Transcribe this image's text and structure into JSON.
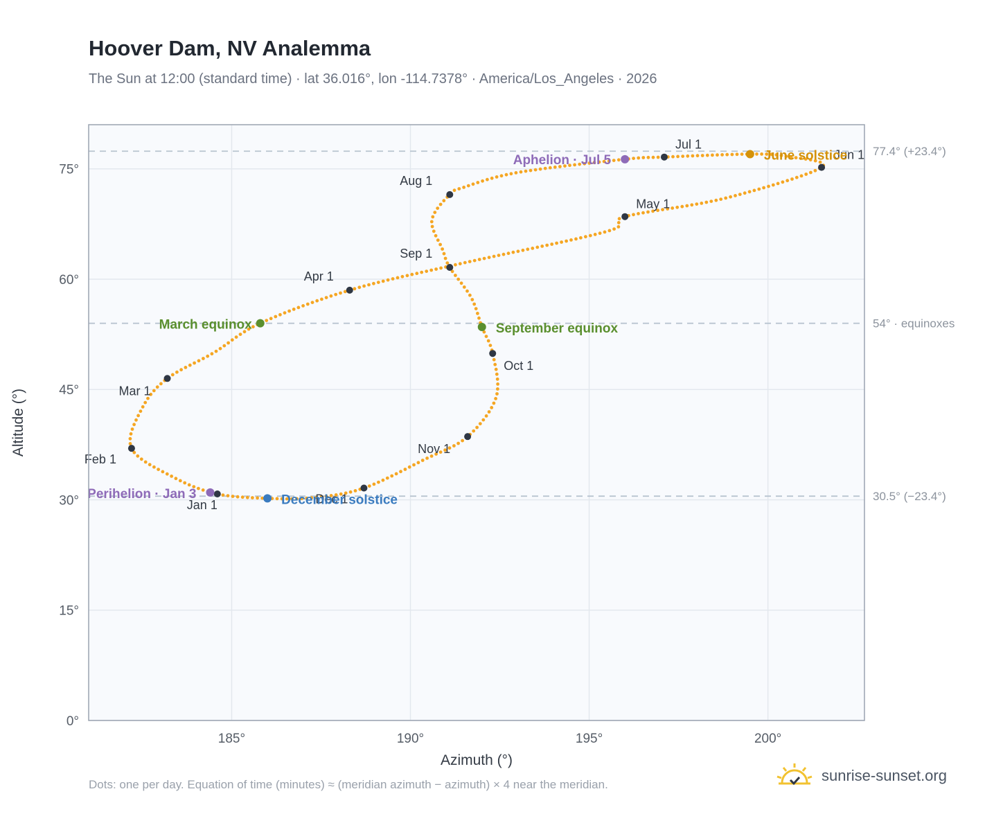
{
  "title": "Hoover Dam, NV Analemma",
  "subtitle": "The Sun at 12:00 (standard time) · lat 36.016°, lon -114.7378° · America/Los_Angeles · 2026",
  "footnote": "Dots: one per day. Equation of time (minutes) ≈ (meridian azimuth − azimuth) × 4 near the meridian.",
  "brand": {
    "name": "sunrise-sunset.org",
    "logo_icon": "sun-checkmark-icon"
  },
  "colors": {
    "curve": "#f5a623",
    "month_marker": "#2f3744",
    "equinox": "#5a8f2e",
    "june_solstice": "#d4920a",
    "december_solstice": "#3a7bbf",
    "apsis": "#8e6bb8",
    "plot_bg": "#f8fafd",
    "grid": "#e3e8ee",
    "reference_line": "#b8c4d0",
    "axis_border": "#9aa3b0"
  },
  "chart_data": {
    "type": "scatter",
    "title": "Hoover Dam, NV Analemma",
    "xlabel": "Azimuth (°)",
    "ylabel": "Altitude (°)",
    "xlim": [
      181,
      202.7
    ],
    "ylim": [
      0,
      81
    ],
    "grid": true,
    "x_ticks": [
      185,
      190,
      195,
      200
    ],
    "x_tick_labels": [
      "185°",
      "190°",
      "195°",
      "200°"
    ],
    "y_ticks": [
      0,
      15,
      30,
      45,
      60,
      75
    ],
    "y_tick_labels": [
      "0°",
      "15°",
      "30°",
      "45°",
      "60°",
      "75°"
    ],
    "series": [
      {
        "kind": "daily_path",
        "points": [
          [
            184.6,
            30.8
          ],
          [
            183.4,
            33.0
          ],
          [
            182.2,
            37.0
          ],
          [
            182.5,
            42.5
          ],
          [
            183.2,
            46.5
          ],
          [
            184.5,
            50.0
          ],
          [
            185.8,
            54.0
          ],
          [
            188.3,
            58.5
          ],
          [
            191.3,
            62.0
          ],
          [
            195.5,
            66.5
          ],
          [
            196.0,
            68.5
          ],
          [
            198.8,
            71.0
          ],
          [
            201.5,
            75.2
          ],
          [
            200.5,
            76.7
          ],
          [
            199.5,
            77.0
          ],
          [
            197.1,
            76.6
          ],
          [
            196.0,
            76.3
          ],
          [
            193.0,
            74.5
          ],
          [
            191.5,
            72.5
          ],
          [
            191.1,
            71.5
          ],
          [
            190.6,
            68.0
          ],
          [
            190.9,
            64.0
          ],
          [
            191.1,
            61.6
          ],
          [
            191.7,
            57.5
          ],
          [
            192.0,
            53.5
          ],
          [
            192.3,
            49.9
          ],
          [
            192.4,
            44.0
          ],
          [
            191.6,
            38.6
          ],
          [
            190.4,
            35.5
          ],
          [
            188.7,
            31.6
          ],
          [
            187.3,
            30.3
          ],
          [
            186.0,
            30.2
          ],
          [
            184.6,
            30.8
          ]
        ]
      }
    ],
    "month_markers": [
      {
        "label": "Jan 1",
        "x": 184.6,
        "y": 30.8
      },
      {
        "label": "Feb 1",
        "x": 182.2,
        "y": 37.0
      },
      {
        "label": "Mar 1",
        "x": 183.2,
        "y": 46.5
      },
      {
        "label": "Apr 1",
        "x": 188.3,
        "y": 58.5
      },
      {
        "label": "May 1",
        "x": 196.0,
        "y": 68.5
      },
      {
        "label": "Jun 1",
        "x": 201.5,
        "y": 75.2
      },
      {
        "label": "Jul 1",
        "x": 197.1,
        "y": 76.6
      },
      {
        "label": "Aug 1",
        "x": 191.1,
        "y": 71.5
      },
      {
        "label": "Sep 1",
        "x": 191.1,
        "y": 61.6
      },
      {
        "label": "Oct 1",
        "x": 192.3,
        "y": 49.9
      },
      {
        "label": "Nov 1",
        "x": 191.6,
        "y": 38.6
      },
      {
        "label": "Dec 1",
        "x": 188.7,
        "y": 31.6
      }
    ],
    "special_points": [
      {
        "label": "March equinox",
        "x": 185.8,
        "y": 54.0,
        "kind": "equinox"
      },
      {
        "label": "September equinox",
        "x": 192.0,
        "y": 53.5,
        "kind": "equinox"
      },
      {
        "label": "June solstice",
        "x": 199.5,
        "y": 77.0,
        "kind": "june_solstice"
      },
      {
        "label": "December solstice",
        "x": 186.0,
        "y": 30.2,
        "kind": "december_solstice"
      },
      {
        "label": "Aphelion · Jul 5",
        "x": 196.0,
        "y": 76.3,
        "kind": "apsis"
      },
      {
        "label": "Perihelion · Jan 3",
        "x": 184.4,
        "y": 31.0,
        "kind": "apsis"
      }
    ],
    "reference_lines": [
      {
        "y": 77.4,
        "label": "77.4° (+23.4°)"
      },
      {
        "y": 54.0,
        "label": "54° · equinoxes"
      },
      {
        "y": 30.5,
        "label": "30.5° (−23.4°)"
      }
    ]
  }
}
